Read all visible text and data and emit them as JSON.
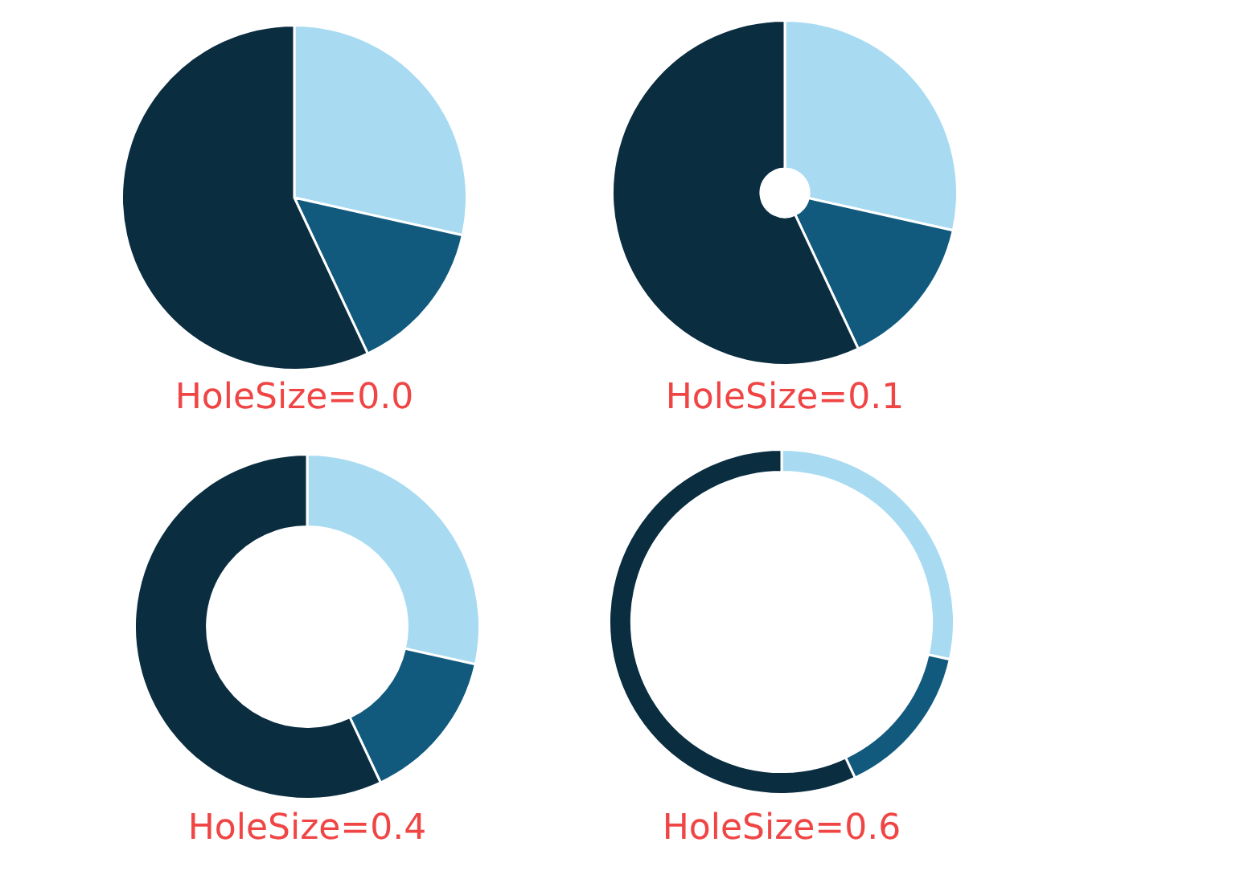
{
  "chart_data": [
    {
      "type": "pie",
      "title": "HoleSize=0.0",
      "categories": [
        null,
        null,
        null
      ],
      "values": [
        28.5,
        14.5,
        57
      ],
      "colors": [
        "#a8dbf2",
        "#115a7e",
        "#0a2d40"
      ]
    },
    {
      "type": "donut",
      "title": "HoleSize=0.1",
      "categories": [
        null,
        null,
        null
      ],
      "values": [
        28.5,
        14.5,
        57
      ],
      "colors": [
        "#a8dbf2",
        "#115a7e",
        "#0a2d40"
      ]
    },
    {
      "type": "donut",
      "title": "HoleSize=0.4",
      "categories": [
        null,
        null,
        null
      ],
      "values": [
        28.5,
        14.5,
        57
      ],
      "colors": [
        "#a8dbf2",
        "#115a7e",
        "#0a2d40"
      ]
    },
    {
      "type": "donut",
      "title": "HoleSize=0.6",
      "categories": [
        null,
        null,
        null
      ],
      "values": [
        28.5,
        14.5,
        57
      ],
      "colors": [
        "#a8dbf2",
        "#115a7e",
        "#0a2d40"
      ]
    }
  ]
}
